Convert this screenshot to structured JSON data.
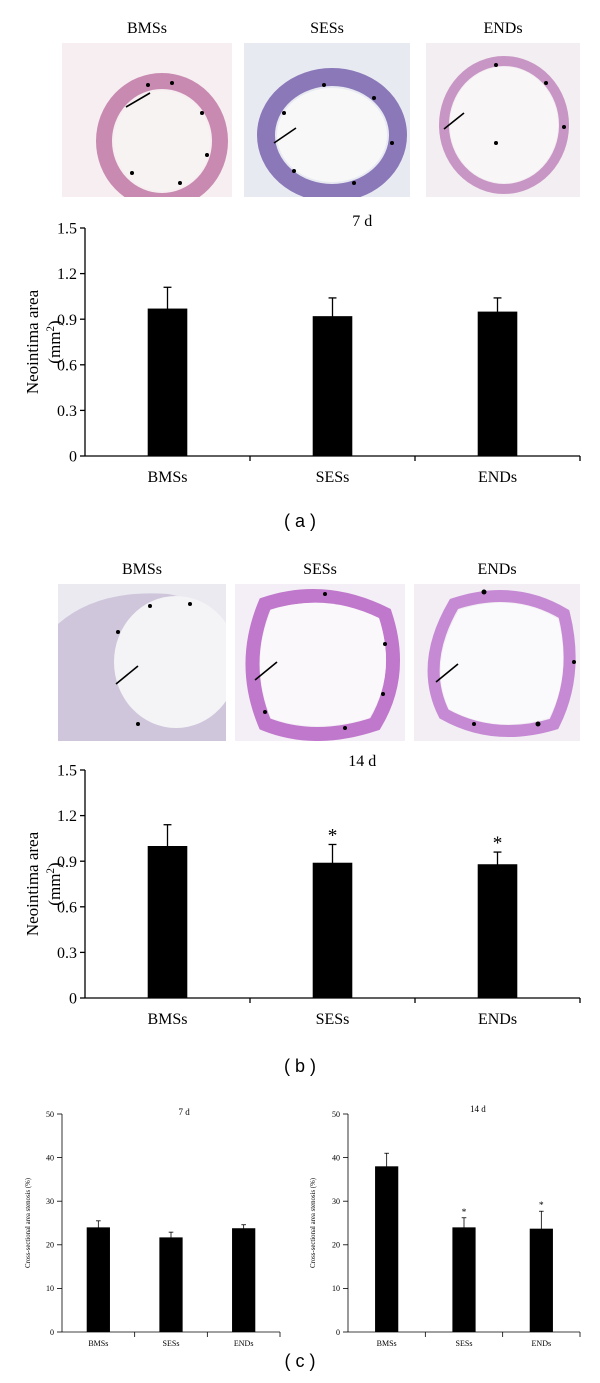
{
  "photo_labels_a": [
    "BMSs",
    "SESs",
    "ENDs"
  ],
  "photo_labels_b": [
    "BMSs",
    "SESs",
    "ENDs"
  ],
  "panel_labels": [
    "( a )",
    "( b )",
    "( c )"
  ],
  "chart_data": [
    {
      "type": "bar",
      "title": "7 d",
      "ylabel": "Neointima area",
      "yunit_base": "(mm",
      "yunit_sup": "2",
      "yunit_close": ")",
      "categories": [
        "BMSs",
        "SESs",
        "ENDs"
      ],
      "values": [
        0.97,
        0.92,
        0.95
      ],
      "errors": [
        0.14,
        0.12,
        0.09
      ],
      "significance": [
        "",
        "",
        ""
      ],
      "ylim": [
        0,
        1.5
      ],
      "yticks": [
        "0",
        "0.3",
        "0.6",
        "0.9",
        "1.2",
        "1.5"
      ],
      "bar_color": "#000000"
    },
    {
      "type": "bar",
      "title": "14 d",
      "ylabel": "Neointima area",
      "yunit_base": "(mm",
      "yunit_sup": "2",
      "yunit_close": ")",
      "categories": [
        "BMSs",
        "SESs",
        "ENDs"
      ],
      "values": [
        1.0,
        0.89,
        0.88
      ],
      "errors": [
        0.14,
        0.12,
        0.08
      ],
      "significance": [
        "",
        "*",
        "*"
      ],
      "ylim": [
        0,
        1.5
      ],
      "yticks": [
        "0",
        "0.3",
        "0.6",
        "0.9",
        "1.2",
        "1.5"
      ],
      "bar_color": "#000000"
    },
    {
      "type": "bar",
      "title": "7 d",
      "ylabel": "Cross-sectional area stenosis (%)",
      "categories": [
        "BMSs",
        "SESs",
        "ENDs"
      ],
      "values": [
        24,
        21.7,
        23.8
      ],
      "errors": [
        1.5,
        1.2,
        0.8
      ],
      "significance": [
        "",
        "",
        ""
      ],
      "ylim": [
        0,
        50
      ],
      "yticks": [
        "0",
        "10",
        "20",
        "30",
        "40",
        "50"
      ],
      "bar_color": "#000000"
    },
    {
      "type": "bar",
      "title": "14 d",
      "ylabel": "Cross-sectional area stenosis (%)",
      "categories": [
        "BMSs",
        "SESs",
        "ENDs"
      ],
      "values": [
        38,
        24,
        23.7
      ],
      "errors": [
        3,
        2.2,
        4
      ],
      "significance": [
        "",
        "*",
        "*"
      ],
      "ylim": [
        0,
        50
      ],
      "yticks": [
        "0",
        "10",
        "20",
        "30",
        "40",
        "50"
      ],
      "bar_color": "#000000"
    }
  ]
}
